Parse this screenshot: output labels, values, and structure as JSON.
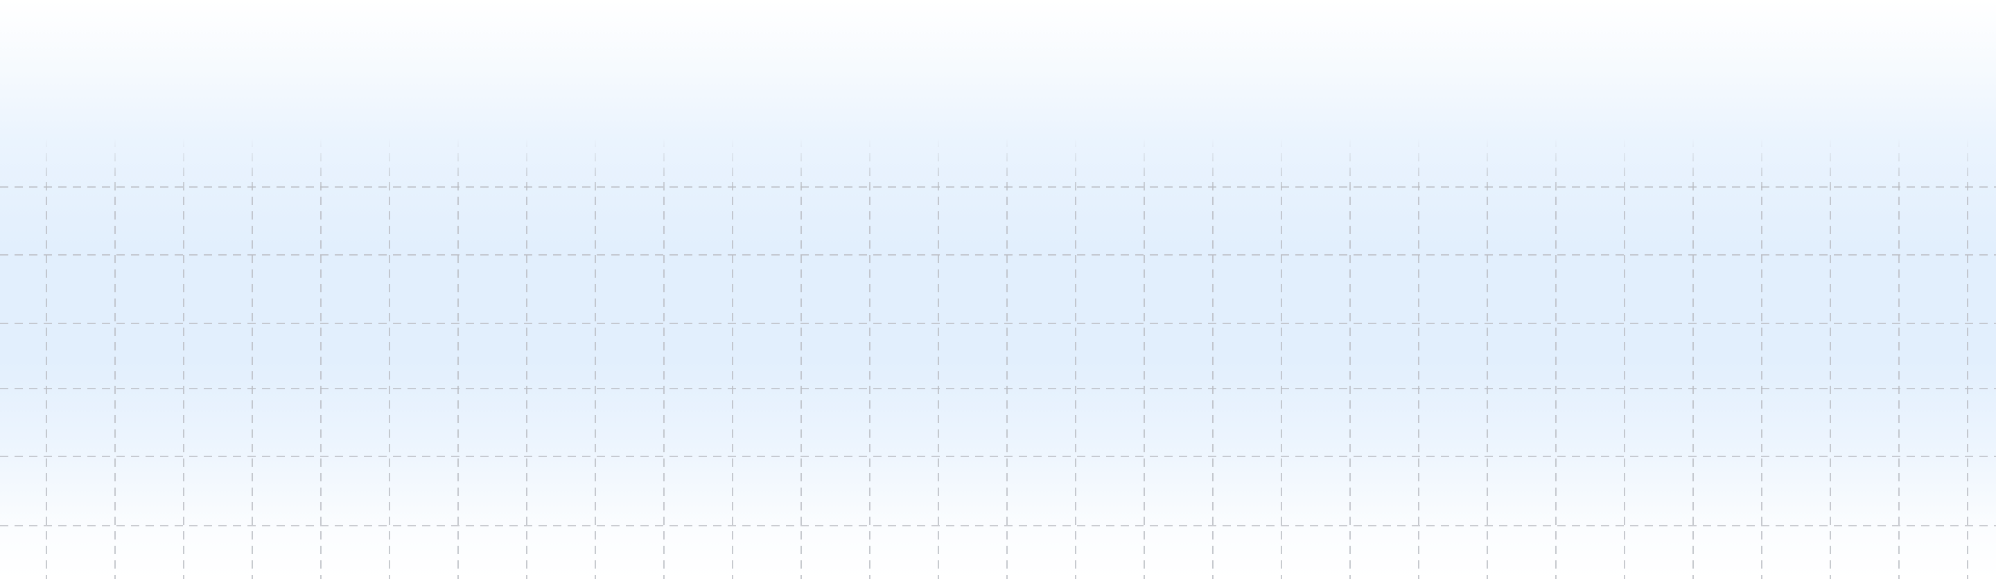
{
  "background": {
    "base_color": "#ffffff",
    "glow_color": "#e2effd",
    "grid_line_color": "#b9bcc2",
    "grid_style": "dashed"
  }
}
